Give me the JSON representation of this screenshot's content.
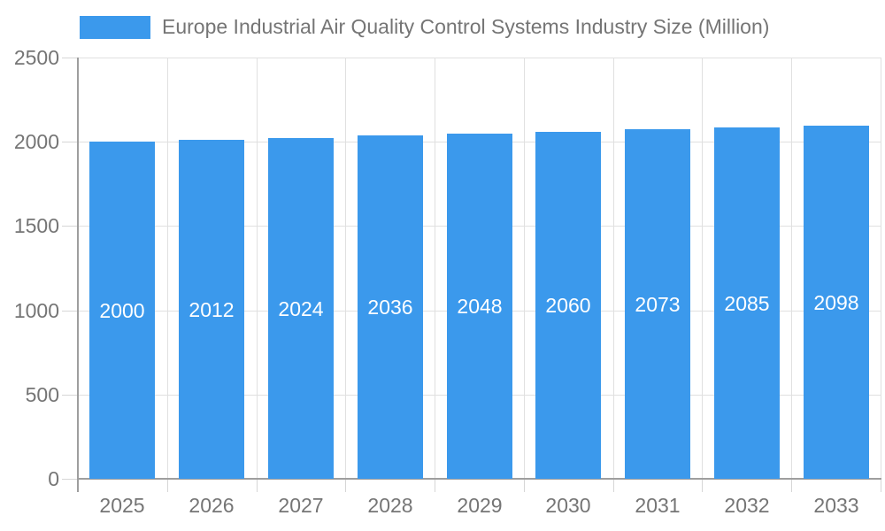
{
  "chart_data": {
    "type": "bar",
    "title": "Europe Industrial Air Quality Control Systems Industry Size (Million)",
    "categories": [
      "2025",
      "2026",
      "2027",
      "2028",
      "2029",
      "2030",
      "2031",
      "2032",
      "2033"
    ],
    "values": [
      2000,
      2012,
      2024,
      2036,
      2048,
      2060,
      2073,
      2085,
      2098
    ],
    "value_labels": [
      "2000",
      "2012",
      "2024",
      "2036",
      "2048",
      "2060",
      "2073",
      "2085",
      "2098"
    ],
    "xlabel": "",
    "ylabel": "",
    "ylim": [
      0,
      2500
    ],
    "yticks": [
      0,
      500,
      1000,
      1500,
      2000,
      2500
    ],
    "ytick_labels": [
      "0",
      "500",
      "1000",
      "1500",
      "2000",
      "2500"
    ],
    "grid": true,
    "legend_position": "top-left",
    "value_labels_inside_bars": true,
    "colors": {
      "bar": "#3b99ec",
      "grid": "#e0e0e0",
      "axis": "#9e9e9e",
      "tick": "#d6d6d6",
      "label_text": "#757575",
      "value_label_text": "#ffffff"
    }
  }
}
